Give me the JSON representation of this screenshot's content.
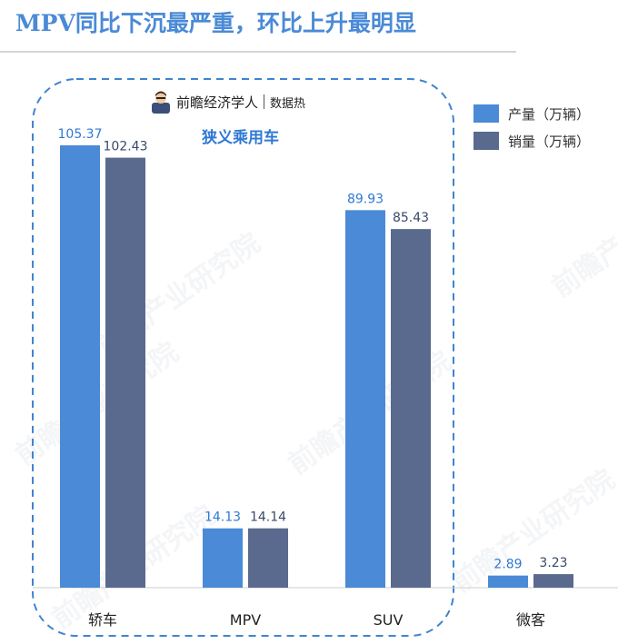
{
  "title": "MPV同比下沉最严重，环比上升最明显",
  "brand": {
    "name": "前瞻经济学人",
    "tag": "数据热"
  },
  "watermark": "前瞻产业研究院",
  "chart_data": {
    "type": "bar",
    "title": "MPV同比下沉最严重，环比上升最明显",
    "subtitle": "狭义乘用车",
    "categories": [
      "轿车",
      "MPV",
      "SUV",
      "微客"
    ],
    "series": [
      {
        "name": "产量（万辆）",
        "color": "#4a8ad6",
        "values": [
          105.37,
          14.13,
          89.93,
          2.89
        ]
      },
      {
        "name": "销量（万辆）",
        "color": "#5a6a8e",
        "values": [
          102.43,
          14.14,
          85.43,
          3.23
        ]
      }
    ],
    "ylim": [
      0,
      112
    ],
    "grid": false,
    "legend": "top-right",
    "highlight": {
      "label": "狭义乘用车",
      "categories": [
        "轿车",
        "MPV",
        "SUV"
      ],
      "style": "dashed-rounded-box"
    }
  }
}
